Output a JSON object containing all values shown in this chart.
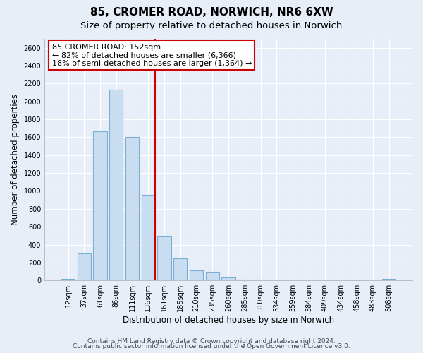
{
  "title": "85, CROMER ROAD, NORWICH, NR6 6XW",
  "subtitle": "Size of property relative to detached houses in Norwich",
  "xlabel": "Distribution of detached houses by size in Norwich",
  "ylabel": "Number of detached properties",
  "bar_labels": [
    "12sqm",
    "37sqm",
    "61sqm",
    "86sqm",
    "111sqm",
    "136sqm",
    "161sqm",
    "185sqm",
    "210sqm",
    "235sqm",
    "260sqm",
    "285sqm",
    "310sqm",
    "334sqm",
    "359sqm",
    "384sqm",
    "409sqm",
    "434sqm",
    "458sqm",
    "483sqm",
    "508sqm"
  ],
  "bar_values": [
    20,
    300,
    1670,
    2130,
    1600,
    960,
    500,
    250,
    115,
    95,
    30,
    10,
    8,
    5,
    3,
    2,
    2,
    2,
    2,
    2,
    15
  ],
  "bar_color": "#c9ddf0",
  "bar_edge_color": "#7aafd4",
  "annotation_title": "85 CROMER ROAD: 152sqm",
  "annotation_line1": "← 82% of detached houses are smaller (6,366)",
  "annotation_line2": "18% of semi-detached houses are larger (1,364) →",
  "annotation_box_color": "#ffffff",
  "annotation_box_edge_color": "#cc0000",
  "red_line_color": "#cc0000",
  "ylim": [
    0,
    2700
  ],
  "yticks": [
    0,
    200,
    400,
    600,
    800,
    1000,
    1200,
    1400,
    1600,
    1800,
    2000,
    2200,
    2400,
    2600
  ],
  "footer1": "Contains HM Land Registry data © Crown copyright and database right 2024.",
  "footer2": "Contains public sector information licensed under the Open Government Licence v3.0.",
  "bg_color": "#e8eef8",
  "grid_color": "#ffffff",
  "title_fontsize": 11,
  "subtitle_fontsize": 9.5,
  "axis_label_fontsize": 8.5,
  "tick_fontsize": 7,
  "annotation_fontsize": 8,
  "footer_fontsize": 6.5
}
